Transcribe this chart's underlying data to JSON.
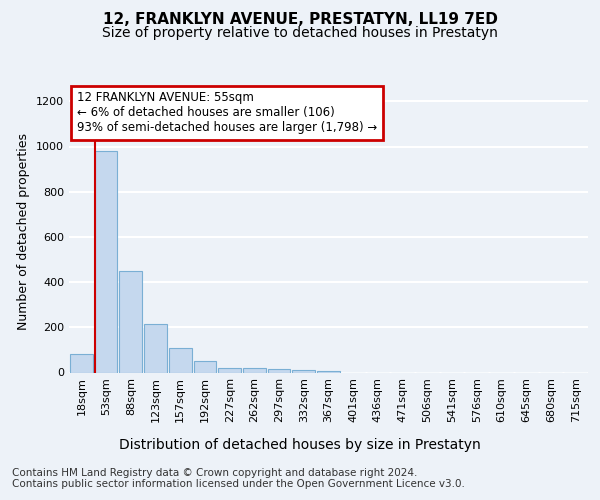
{
  "title": "12, FRANKLYN AVENUE, PRESTATYN, LL19 7ED",
  "subtitle": "Size of property relative to detached houses in Prestatyn",
  "xlabel": "Distribution of detached houses by size in Prestatyn",
  "ylabel": "Number of detached properties",
  "categories": [
    "18sqm",
    "53sqm",
    "88sqm",
    "123sqm",
    "157sqm",
    "192sqm",
    "227sqm",
    "262sqm",
    "297sqm",
    "332sqm",
    "367sqm",
    "401sqm",
    "436sqm",
    "471sqm",
    "506sqm",
    "541sqm",
    "576sqm",
    "610sqm",
    "645sqm",
    "680sqm",
    "715sqm"
  ],
  "bar_heights": [
    80,
    980,
    450,
    215,
    110,
    50,
    22,
    20,
    15,
    10,
    7,
    0,
    0,
    0,
    0,
    0,
    0,
    0,
    0,
    0,
    0
  ],
  "bar_color": "#c5d8ee",
  "bar_edge_color": "#7aafd4",
  "vline_color": "#cc0000",
  "vline_x": 0.55,
  "ylim": [
    0,
    1250
  ],
  "yticks": [
    0,
    200,
    400,
    600,
    800,
    1000,
    1200
  ],
  "annotation_title": "12 FRANKLYN AVENUE: 55sqm",
  "annotation_line1": "← 6% of detached houses are smaller (106)",
  "annotation_line2": "93% of semi-detached houses are larger (1,798) →",
  "annotation_box_facecolor": "#ffffff",
  "annotation_box_edgecolor": "#cc0000",
  "footer1": "Contains HM Land Registry data © Crown copyright and database right 2024.",
  "footer2": "Contains public sector information licensed under the Open Government Licence v3.0.",
  "bg_color": "#edf2f8",
  "plot_bg_color": "#edf2f8",
  "grid_color": "#ffffff",
  "title_fontsize": 11,
  "subtitle_fontsize": 10,
  "ylabel_fontsize": 9,
  "xlabel_fontsize": 10,
  "tick_fontsize": 8,
  "annotation_fontsize": 8.5,
  "footer_fontsize": 7.5
}
